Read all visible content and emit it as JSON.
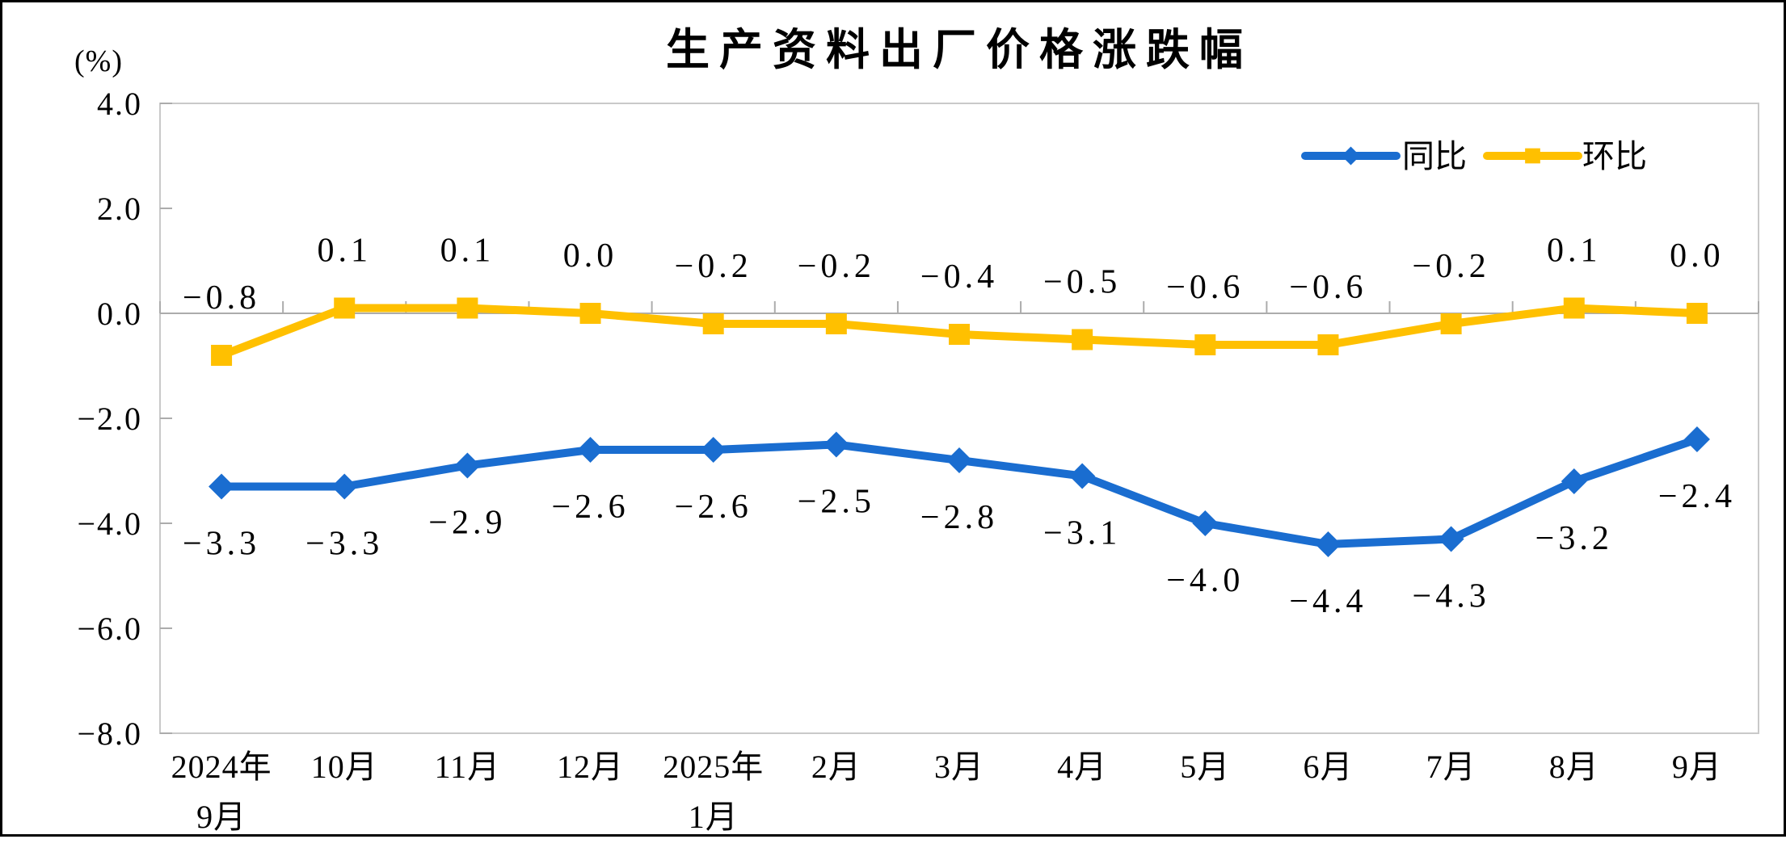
{
  "chart_data": {
    "type": "line",
    "title": "生产资料出厂价格涨跌幅",
    "unit_label": "(%)",
    "categories": [
      "2024年\n9月",
      "10月",
      "11月",
      "12月",
      "2025年\n1月",
      "2月",
      "3月",
      "4月",
      "5月",
      "6月",
      "7月",
      "8月",
      "9月"
    ],
    "series": [
      {
        "id": "yoy",
        "name": "同比",
        "color": "#1A6DD0",
        "marker": "diamond",
        "label_position": "below",
        "values": [
          -3.3,
          -3.3,
          -2.9,
          -2.6,
          -2.6,
          -2.5,
          -2.8,
          -3.1,
          -4.0,
          -4.4,
          -4.3,
          -3.2,
          -2.4
        ]
      },
      {
        "id": "mom",
        "name": "环比",
        "color": "#FFC000",
        "marker": "square",
        "label_position": "above",
        "values": [
          -0.8,
          0.1,
          0.1,
          0.0,
          -0.2,
          -0.2,
          -0.4,
          -0.5,
          -0.6,
          -0.6,
          -0.2,
          0.1,
          0.0
        ]
      }
    ],
    "ylim": [
      -8.0,
      4.0
    ],
    "y_tick_step": 2.0,
    "y_ticks": [
      4.0,
      2.0,
      0.0,
      -2.0,
      -4.0,
      -6.0,
      -8.0
    ],
    "legend_position": "top-right",
    "gridlines": false,
    "axis_color": "#ACACAC",
    "border_color": "#C9C9C9",
    "frame_color": "#000000",
    "text_color": "#000000"
  }
}
